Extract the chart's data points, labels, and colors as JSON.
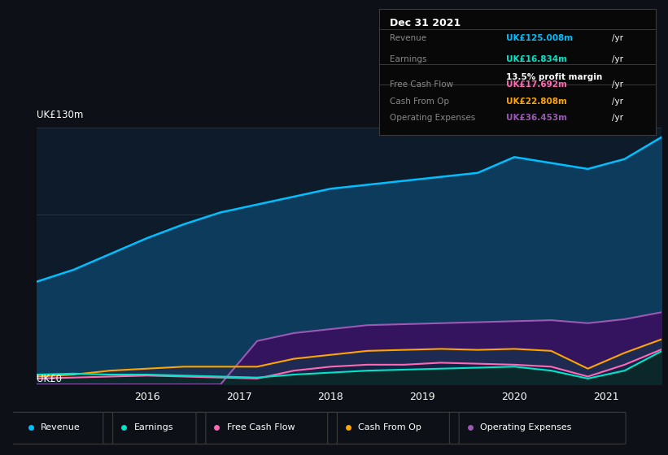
{
  "background_color": "#0d1117",
  "chart_bg": "#0d1b2a",
  "years": [
    2014.8,
    2015.2,
    2015.6,
    2016.0,
    2016.4,
    2016.8,
    2017.2,
    2017.6,
    2018.0,
    2018.4,
    2018.8,
    2019.2,
    2019.6,
    2020.0,
    2020.4,
    2020.8,
    2021.2,
    2021.6
  ],
  "revenue": [
    52,
    58,
    66,
    74,
    81,
    87,
    91,
    95,
    99,
    101,
    103,
    105,
    107,
    115,
    112,
    109,
    114,
    125
  ],
  "earnings": [
    5,
    5.5,
    5,
    5,
    4.5,
    4,
    3.5,
    5,
    6,
    7,
    7.5,
    8,
    8.5,
    9,
    7,
    3,
    7,
    16.8
  ],
  "free_cash": [
    3,
    3.5,
    4,
    4.5,
    4,
    3.5,
    3,
    7,
    9,
    10,
    10,
    11,
    10.5,
    10,
    9,
    4,
    10,
    17.7
  ],
  "cash_from_op": [
    4,
    5,
    7,
    8,
    9,
    9,
    9,
    13,
    15,
    17,
    17.5,
    18,
    17.5,
    18,
    17,
    8,
    16,
    22.8
  ],
  "op_expenses": [
    0,
    0,
    0,
    0,
    0,
    0,
    22,
    26,
    28,
    30,
    30.5,
    31,
    31.5,
    32,
    32.5,
    31,
    33,
    36.5
  ],
  "ylim": [
    0,
    130
  ],
  "xtick_years": [
    2016,
    2017,
    2018,
    2019,
    2020,
    2021
  ],
  "revenue_color": "#00bfff",
  "earnings_color": "#00e5c8",
  "free_cash_color": "#ff69b4",
  "cash_from_op_color": "#ffa500",
  "op_expenses_color": "#9b59b6",
  "revenue_fill": "#0d3b5c",
  "op_expenses_fill": "#3a1060",
  "cash_from_op_fill": "#1a3050",
  "free_cash_fill": "#102040",
  "earnings_fill": "#0a2828",
  "info_box": {
    "date": "Dec 31 2021",
    "rows": [
      {
        "label": "Revenue",
        "value": "UK£125.008m",
        "color": "#00bfff",
        "sub": null
      },
      {
        "label": "Earnings",
        "value": "UK£16.834m",
        "color": "#00e5c8",
        "sub": "13.5% profit margin"
      },
      {
        "label": "Free Cash Flow",
        "value": "UK£17.692m",
        "color": "#ff69b4",
        "sub": null
      },
      {
        "label": "Cash From Op",
        "value": "UK£22.808m",
        "color": "#ffa500",
        "sub": null
      },
      {
        "label": "Operating Expenses",
        "value": "UK£36.453m",
        "color": "#9b59b6",
        "sub": null
      }
    ]
  },
  "legend_items": [
    {
      "label": "Revenue",
      "color": "#00bfff"
    },
    {
      "label": "Earnings",
      "color": "#00e5c8"
    },
    {
      "label": "Free Cash Flow",
      "color": "#ff69b4"
    },
    {
      "label": "Cash From Op",
      "color": "#ffa500"
    },
    {
      "label": "Operating Expenses",
      "color": "#9b59b6"
    }
  ]
}
